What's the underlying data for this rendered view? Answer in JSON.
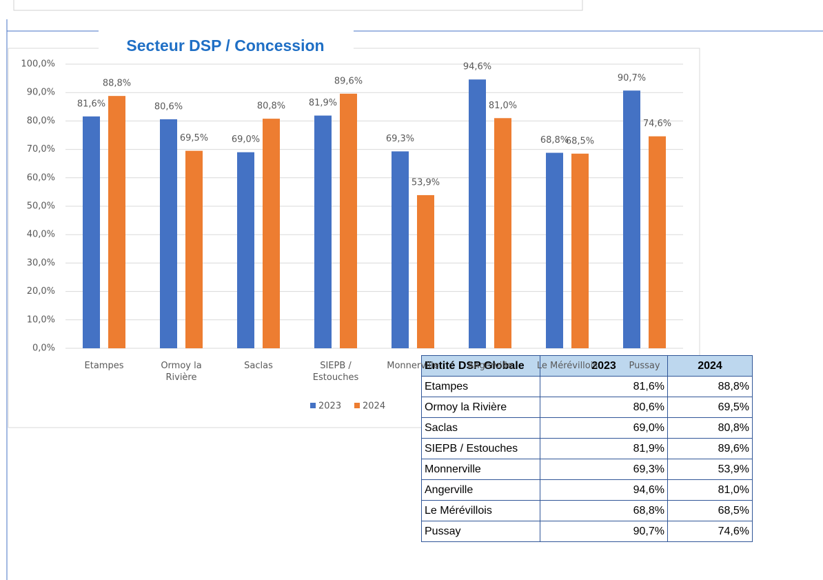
{
  "chart_data": {
    "type": "bar",
    "title": "Secteur DSP / Concession",
    "categories": [
      "Etampes",
      "Ormoy la Rivière",
      "Saclas",
      "SIEPB / Estouches",
      "Monnerville",
      "Angerville",
      "Le Mérévillois",
      "Pussay"
    ],
    "series": [
      {
        "name": "2023",
        "color": "#4472c4",
        "values": [
          81.6,
          80.6,
          69.0,
          81.9,
          69.3,
          94.6,
          68.8,
          90.7
        ],
        "value_labels": [
          "81,6%",
          "80,6%",
          "69,0%",
          "81,9%",
          "69,3%",
          "94,6%",
          "68,8%",
          "90,7%"
        ]
      },
      {
        "name": "2024",
        "color": "#ed7d31",
        "values": [
          88.8,
          69.5,
          80.8,
          89.6,
          53.9,
          81.0,
          68.5,
          74.6
        ],
        "value_labels": [
          "88,8%",
          "69,5%",
          "80,8%",
          "89,6%",
          "53,9%",
          "81,0%",
          "68,5%",
          "74,6%"
        ]
      }
    ],
    "ylim": [
      0,
      100
    ],
    "yticks": [
      {
        "value": 0,
        "label": "0,0%"
      },
      {
        "value": 10,
        "label": "10,0%"
      },
      {
        "value": 20,
        "label": "20,0%"
      },
      {
        "value": 30,
        "label": "30,0%"
      },
      {
        "value": 40,
        "label": "40,0%"
      },
      {
        "value": 50,
        "label": "50,0%"
      },
      {
        "value": 60,
        "label": "60,0%"
      },
      {
        "value": 70,
        "label": "70,0%"
      },
      {
        "value": 80,
        "label": "80,0%"
      },
      {
        "value": 90,
        "label": "90,0%"
      },
      {
        "value": 100,
        "label": "100,0%"
      }
    ],
    "grid": true,
    "legend": "bottom"
  },
  "table": {
    "header": [
      "Entité DSP Globale",
      "2023",
      "2024"
    ],
    "rows": [
      [
        "Etampes",
        "81,6%",
        "88,8%"
      ],
      [
        "Ormoy la Rivière",
        "80,6%",
        "69,5%"
      ],
      [
        "Saclas",
        "69,0%",
        "80,8%"
      ],
      [
        "SIEPB / Estouches",
        "81,9%",
        "89,6%"
      ],
      [
        "Monnerville",
        "69,3%",
        "53,9%"
      ],
      [
        "Angerville",
        "94,6%",
        "81,0%"
      ],
      [
        "Le Mérévillois",
        "68,8%",
        "68,5%"
      ],
      [
        "Pussay",
        "90,7%",
        "74,6%"
      ]
    ]
  }
}
